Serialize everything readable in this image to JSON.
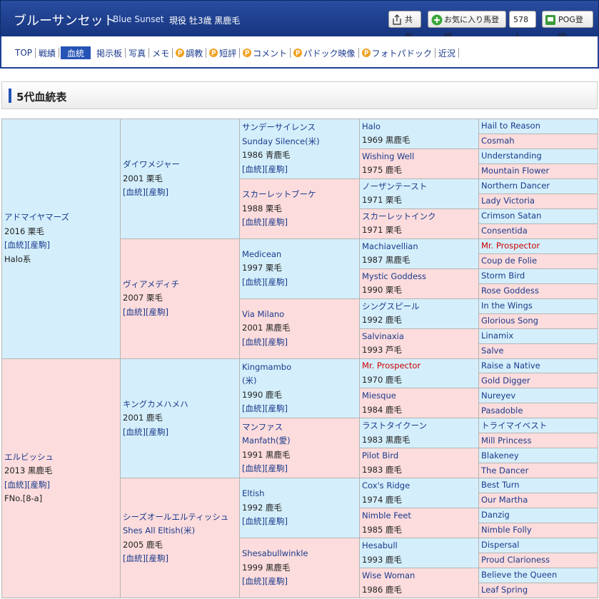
{
  "header": {
    "title": "ブルーサンセット",
    "title_en": "Blue Sunset",
    "status": "現役 牡3歳 黒鹿毛",
    "buttons": {
      "share": "共有",
      "favorite": "お気に入り馬登録",
      "favorite_count": "578人",
      "pog": "POG登録"
    }
  },
  "nav": [
    {
      "label": "TOP"
    },
    {
      "label": "戦績"
    },
    {
      "label": "血統",
      "active": true
    },
    {
      "label": "掲示板"
    },
    {
      "label": "写真"
    },
    {
      "label": "メモ"
    },
    {
      "label": "調教",
      "premium": true
    },
    {
      "label": "短評",
      "premium": true
    },
    {
      "label": "コメント",
      "premium": true
    },
    {
      "label": "パドック映像",
      "premium": true
    },
    {
      "label": "フォトパドック",
      "premium": true
    },
    {
      "label": "近況"
    }
  ],
  "section_title": "5代血統表",
  "pedigree": {
    "colors": {
      "sire": "#d4effb",
      "dam": "#fcdcdc",
      "highlight": "#cc0000"
    },
    "generations": [
      [
        {
          "name": "アドマイヤマーズ",
          "info": "2016 栗毛",
          "links": "[血統][産駒]",
          "note": "Halo系"
        },
        {
          "name": "エルビッシュ",
          "info": "2013 黒鹿毛",
          "links": "[血統][産駒]",
          "note": "FNo.[8-a]"
        }
      ],
      [
        {
          "name": "ダイワメジャー",
          "info": "2001 栗毛",
          "links": "[血統][産駒]"
        },
        {
          "name": "ヴィアメディチ",
          "info": "2007 栗毛",
          "links": "[血統][産駒]"
        },
        {
          "name": "キングカメハメハ",
          "info": "2001 鹿毛",
          "links": "[血統][産駒]"
        },
        {
          "name": "シーズオールエルティッシュ",
          "name_en": "Shes All Eltish(米)",
          "info": "2005 鹿毛",
          "links": "[血統][産駒]"
        }
      ],
      [
        {
          "name": "サンデーサイレンス",
          "name_en": "Sunday Silence(米)",
          "info": "1986 青鹿毛",
          "links": "[血統][産駒]"
        },
        {
          "name": "スカーレットブーケ",
          "info": "1988 栗毛",
          "links": "[血統][産駒]"
        },
        {
          "name": "Medicean",
          "info": "1997 栗毛",
          "links": "[血統][産駒]"
        },
        {
          "name": "Via Milano",
          "info": "2001 黒鹿毛",
          "links": "[血統][産駒]"
        },
        {
          "name": "Kingmambo",
          "name_en": "(米)",
          "info": "1990 鹿毛",
          "links": "[血統][産駒]"
        },
        {
          "name": "マンファス",
          "name_en": "Manfath(愛)",
          "info": "1991 黒鹿毛",
          "links": "[血統][産駒]"
        },
        {
          "name": "Eltish",
          "info": "1992 鹿毛",
          "links": "[血統][産駒]"
        },
        {
          "name": "Shesabullwinkle",
          "info": "1999 黒鹿毛",
          "links": "[血統][産駒]"
        }
      ],
      [
        {
          "name": "Halo",
          "info": "1969 黒鹿毛"
        },
        {
          "name": "Wishing Well",
          "info": "1975 鹿毛"
        },
        {
          "name": "ノーザンテースト",
          "info": "1971 栗毛"
        },
        {
          "name": "スカーレットインク",
          "info": "1971 栗毛"
        },
        {
          "name": "Machiavellian",
          "info": "1987 黒鹿毛"
        },
        {
          "name": "Mystic Goddess",
          "info": "1990 栗毛"
        },
        {
          "name": "シングスピール",
          "info": "1992 鹿毛"
        },
        {
          "name": "Salvinaxia",
          "info": "1993 芦毛"
        },
        {
          "name": "Mr. Prospector",
          "info": "1970 鹿毛",
          "highlight": true
        },
        {
          "name": "Miesque",
          "info": "1984 鹿毛"
        },
        {
          "name": "ラストタイクーン",
          "info": "1983 黒鹿毛"
        },
        {
          "name": "Pilot Bird",
          "info": "1983 鹿毛"
        },
        {
          "name": "Cox's Ridge",
          "info": "1974 鹿毛"
        },
        {
          "name": "Nimble Feet",
          "info": "1985 鹿毛"
        },
        {
          "name": "Hesabull",
          "info": "1993 鹿毛"
        },
        {
          "name": "Wise Woman",
          "info": "1986 鹿毛"
        }
      ],
      [
        {
          "name": "Hail to Reason"
        },
        {
          "name": "Cosmah"
        },
        {
          "name": "Understanding"
        },
        {
          "name": "Mountain Flower"
        },
        {
          "name": "Northern Dancer"
        },
        {
          "name": "Lady Victoria"
        },
        {
          "name": "Crimson Satan"
        },
        {
          "name": "Consentida"
        },
        {
          "name": "Mr. Prospector",
          "highlight": true
        },
        {
          "name": "Coup de Folie"
        },
        {
          "name": "Storm Bird"
        },
        {
          "name": "Rose Goddess"
        },
        {
          "name": "In the Wings"
        },
        {
          "name": "Glorious Song"
        },
        {
          "name": "Linamix"
        },
        {
          "name": "Salve"
        },
        {
          "name": "Raise a Native"
        },
        {
          "name": "Gold Digger"
        },
        {
          "name": "Nureyev"
        },
        {
          "name": "Pasadoble"
        },
        {
          "name": "トライマイベスト"
        },
        {
          "name": "Mill Princess"
        },
        {
          "name": "Blakeney"
        },
        {
          "name": "The Dancer"
        },
        {
          "name": "Best Turn"
        },
        {
          "name": "Our Martha"
        },
        {
          "name": "Danzig"
        },
        {
          "name": "Nimble Folly"
        },
        {
          "name": "Dispersal"
        },
        {
          "name": "Proud Clarioness"
        },
        {
          "name": "Believe the Queen"
        },
        {
          "name": "Leaf Spring"
        }
      ]
    ]
  }
}
